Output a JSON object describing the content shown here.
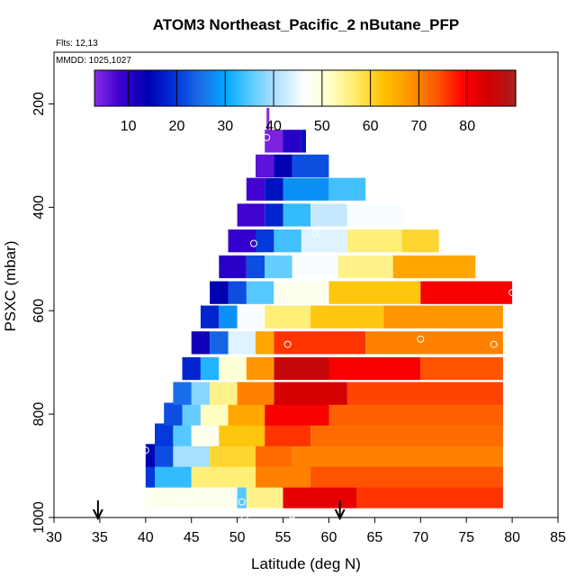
{
  "chart_data": {
    "type": "heatmap",
    "title": "ATOM3 Northeast_Pacific_2 nButane_PFP",
    "flights_label": "Flts: 12,13",
    "dates_label": "MMDD: 1025,1027",
    "xlabel": "Latitude (deg N)",
    "ylabel": "PSXC (mbar)",
    "xlim": [
      30,
      85
    ],
    "ylim": [
      1000,
      100
    ],
    "y_reversed": true,
    "x_ticks": [
      "30",
      "35",
      "40",
      "45",
      "50",
      "55",
      "60",
      "65",
      "70",
      "75",
      "80",
      "85"
    ],
    "y_ticks": [
      "200",
      "400",
      "600",
      "800",
      "1000"
    ],
    "colorbar": {
      "range": [
        3,
        90
      ],
      "ticks": [
        "10",
        "20",
        "30",
        "40",
        "50",
        "60",
        "70",
        "80"
      ],
      "colors": [
        "#8a2be2",
        "#3a00d0",
        "#0000b0",
        "#0030d8",
        "#1a6ce8",
        "#00a8ff",
        "#60ccff",
        "#b8e4ff",
        "#ffffff",
        "#ffffc0",
        "#ffe860",
        "#ffc000",
        "#ff9400",
        "#ff5800",
        "#ff0000",
        "#d00000",
        "#a82020"
      ]
    },
    "rows": [
      {
        "p": 960,
        "segments": [
          [
            40,
            50,
            48
          ],
          [
            50,
            51,
            35
          ],
          [
            51,
            55,
            55
          ],
          [
            55,
            63,
            82
          ],
          [
            63,
            79,
            76
          ]
        ]
      },
      {
        "p": 920,
        "segments": [
          [
            40,
            41,
            20
          ],
          [
            41,
            45,
            33
          ],
          [
            45,
            52,
            56
          ],
          [
            52,
            58,
            70
          ],
          [
            58,
            79,
            74
          ]
        ]
      },
      {
        "p": 880,
        "segments": [
          [
            40,
            41,
            14
          ],
          [
            41,
            43,
            22
          ],
          [
            43,
            47,
            40
          ],
          [
            47,
            52,
            60
          ],
          [
            52,
            56,
            72
          ],
          [
            56,
            79,
            70
          ]
        ]
      },
      {
        "p": 840,
        "segments": [
          [
            41,
            43,
            20
          ],
          [
            43,
            45,
            35
          ],
          [
            45,
            48,
            48
          ],
          [
            48,
            53,
            62
          ],
          [
            53,
            58,
            76
          ],
          [
            58,
            79,
            72
          ]
        ]
      },
      {
        "p": 800,
        "segments": [
          [
            42,
            44,
            22
          ],
          [
            44,
            46,
            36
          ],
          [
            46,
            49,
            52
          ],
          [
            49,
            53,
            66
          ],
          [
            53,
            60,
            80
          ],
          [
            60,
            79,
            73
          ]
        ]
      },
      {
        "p": 760,
        "segments": [
          [
            43,
            45,
            25
          ],
          [
            45,
            47,
            38
          ],
          [
            47,
            50,
            55
          ],
          [
            50,
            54,
            70
          ],
          [
            54,
            62,
            84
          ],
          [
            62,
            79,
            75
          ]
        ]
      },
      {
        "p": 712,
        "segments": [
          [
            44,
            46,
            18
          ],
          [
            46,
            48,
            32
          ],
          [
            48,
            51,
            50
          ],
          [
            51,
            54,
            68
          ],
          [
            54,
            60,
            86
          ],
          [
            60,
            70,
            80
          ],
          [
            70,
            79,
            74
          ]
        ]
      },
      {
        "p": 662,
        "segments": [
          [
            45,
            47,
            12
          ],
          [
            47,
            49,
            24
          ],
          [
            49,
            52,
            44
          ],
          [
            52,
            54,
            66
          ],
          [
            54,
            64,
            76
          ],
          [
            64,
            79,
            70
          ]
        ]
      },
      {
        "p": 612,
        "segments": [
          [
            46,
            48,
            18
          ],
          [
            48,
            50,
            28
          ],
          [
            50,
            53,
            46
          ],
          [
            53,
            58,
            56
          ],
          [
            58,
            66,
            62
          ],
          [
            66,
            79,
            68
          ]
        ]
      },
      {
        "p": 565,
        "segments": [
          [
            47,
            49,
            14
          ],
          [
            49,
            51,
            22
          ],
          [
            51,
            54,
            35
          ],
          [
            54,
            60,
            48
          ],
          [
            60,
            70,
            62
          ],
          [
            70,
            80,
            80
          ]
        ]
      },
      {
        "p": 515,
        "segments": [
          [
            48,
            51,
            10
          ],
          [
            51,
            53,
            22
          ],
          [
            53,
            56,
            36
          ],
          [
            56,
            61,
            46
          ],
          [
            61,
            67,
            55
          ],
          [
            67,
            76,
            66
          ]
        ]
      },
      {
        "p": 465,
        "segments": [
          [
            49,
            52,
            9
          ],
          [
            52,
            54,
            20
          ],
          [
            54,
            57,
            34
          ],
          [
            57,
            62,
            44
          ],
          [
            62,
            68,
            56
          ],
          [
            68,
            72,
            60
          ]
        ]
      },
      {
        "p": 415,
        "segments": [
          [
            50,
            53,
            8
          ],
          [
            53,
            55,
            18
          ],
          [
            55,
            58,
            33
          ],
          [
            58,
            62,
            42
          ],
          [
            62,
            68,
            46
          ]
        ]
      },
      {
        "p": 365,
        "segments": [
          [
            51,
            53,
            8
          ],
          [
            53,
            55,
            16
          ],
          [
            55,
            60,
            28
          ],
          [
            60,
            64,
            34
          ]
        ]
      },
      {
        "p": 320,
        "segments": [
          [
            52,
            54,
            6
          ],
          [
            54,
            56,
            14
          ],
          [
            56,
            60,
            22
          ]
        ]
      },
      {
        "p": 272,
        "segments": [
          [
            53,
            55,
            4
          ],
          [
            55,
            57,
            10
          ],
          [
            57,
            57.5,
            16
          ]
        ]
      },
      {
        "p": 230,
        "segments": [
          [
            53.2,
            53.5,
            3
          ]
        ]
      }
    ],
    "sample_points": [
      [
        53.2,
        265
      ],
      [
        51.8,
        470
      ],
      [
        58.5,
        450
      ],
      [
        55.5,
        665
      ],
      [
        70,
        655
      ],
      [
        78,
        665
      ],
      [
        40,
        870
      ],
      [
        44,
        965
      ],
      [
        50.5,
        970
      ],
      [
        50.8,
        998
      ],
      [
        56,
        995
      ],
      [
        57.8,
        990
      ],
      [
        80,
        565
      ],
      [
        79,
        990
      ]
    ],
    "arrows_latitude": [
      34.8,
      61.2
    ]
  }
}
